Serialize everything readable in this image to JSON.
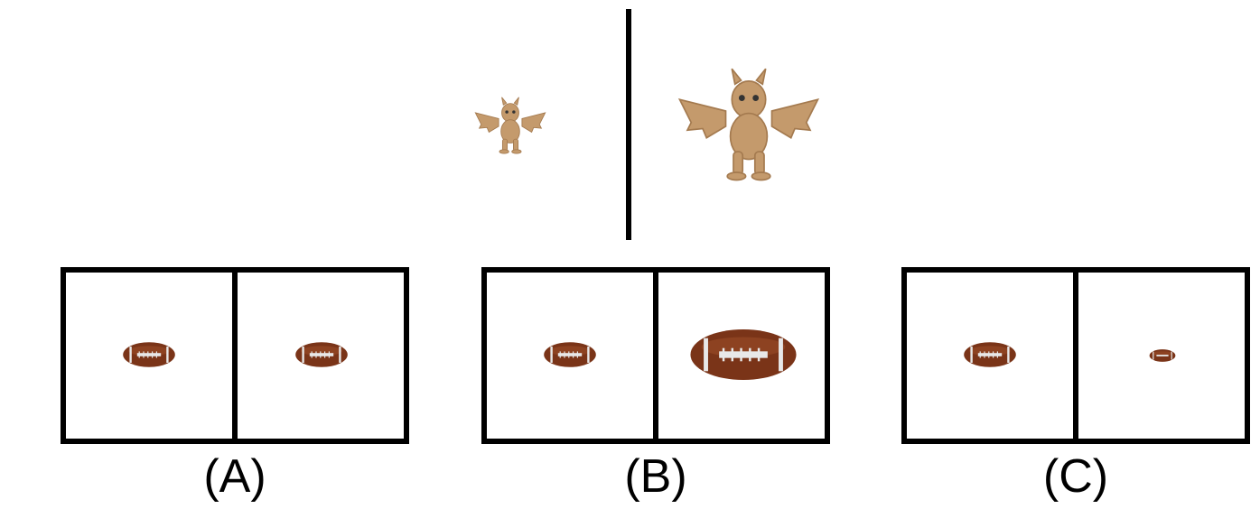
{
  "reference": {
    "left_figure": "dragon-icon",
    "right_figure": "dragon-icon"
  },
  "options": [
    {
      "label": "(A)",
      "left_figure": "football-icon",
      "right_figure": "football-icon"
    },
    {
      "label": "(B)",
      "left_figure": "football-icon",
      "right_figure": "football-icon"
    },
    {
      "label": "(C)",
      "left_figure": "football-icon",
      "right_figure": "football-icon"
    }
  ],
  "colors": {
    "dragon": "#c49a6c",
    "dragon_shadow": "#a47a4f",
    "football": "#7a3418",
    "football_highlight": "#a0502a",
    "stripe": "#e8e8e8",
    "frame": "#000000"
  }
}
